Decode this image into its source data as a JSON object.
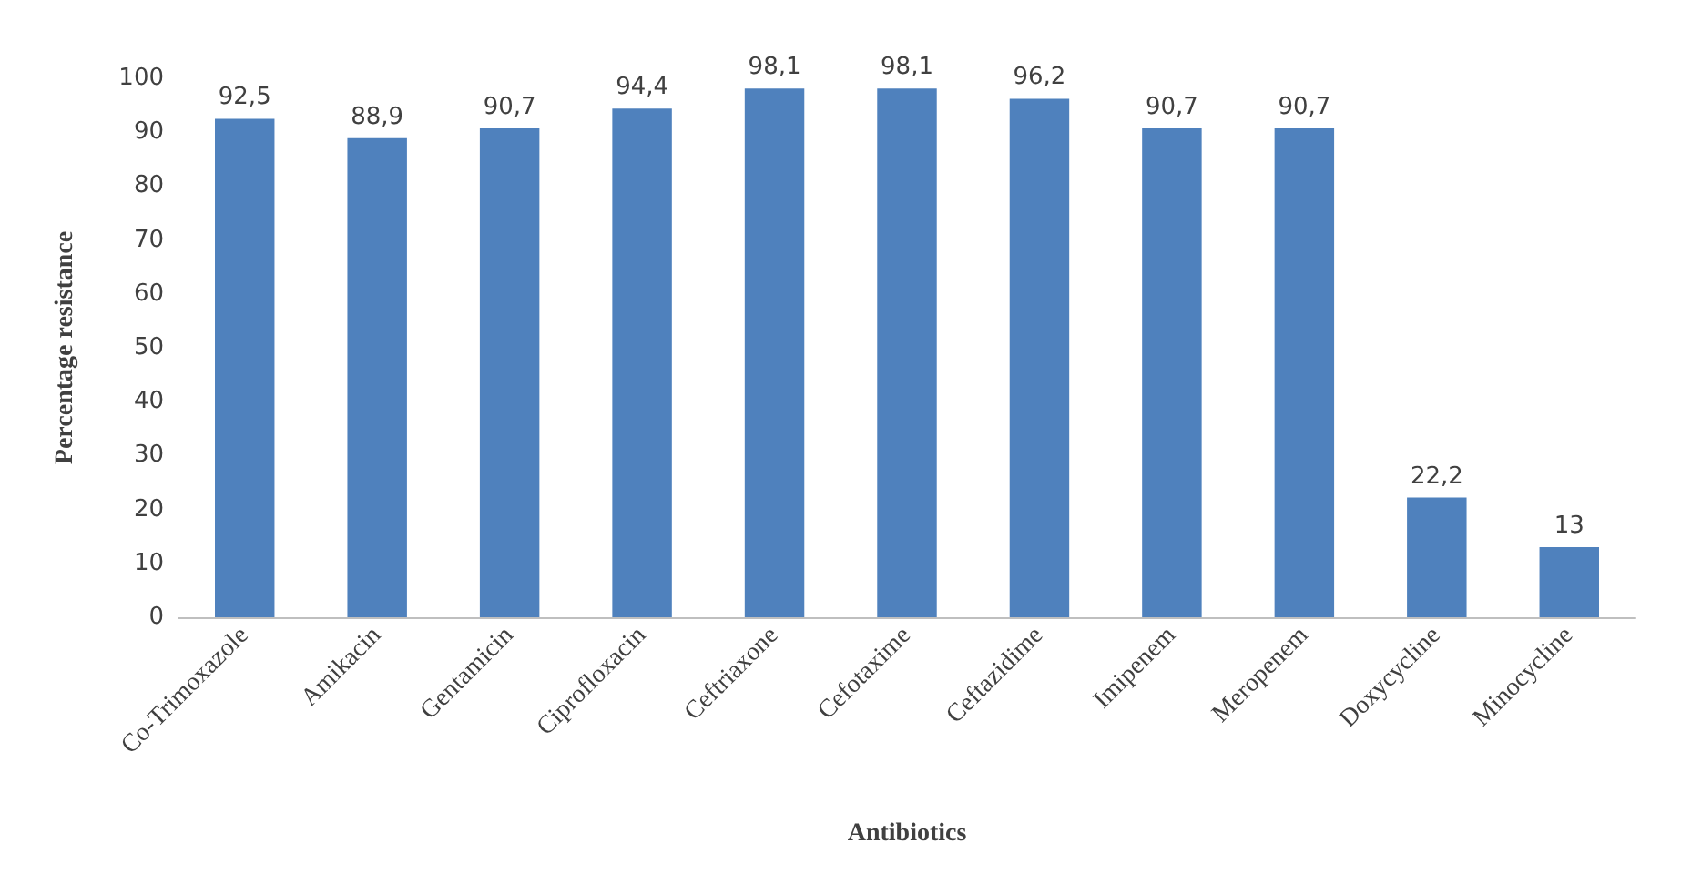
{
  "chart_data": {
    "type": "bar",
    "xlabel": "Antibiotics",
    "ylabel": "Percentage resistance",
    "categories": [
      "Co-Trimoxazole",
      "Amikacin",
      "Gentamicin",
      "Ciprofloxacin",
      "Ceftriaxone",
      "Cefotaxime",
      "Ceftazidime",
      "Imipenem",
      "Meropenem",
      "Doxycycline",
      "Minocycline"
    ],
    "values": [
      92.5,
      88.9,
      90.7,
      94.4,
      98.1,
      98.1,
      96.2,
      90.7,
      90.7,
      22.2,
      13
    ],
    "value_labels": [
      "92,5",
      "88,9",
      "90,7",
      "94,4",
      "98,1",
      "98,1",
      "96,2",
      "90,7",
      "90,7",
      "22,2",
      "13"
    ],
    "color": "#4f81bd",
    "ylim": [
      0,
      100
    ],
    "yticks": [
      0,
      10,
      20,
      30,
      40,
      50,
      60,
      70,
      80,
      90,
      100
    ]
  }
}
